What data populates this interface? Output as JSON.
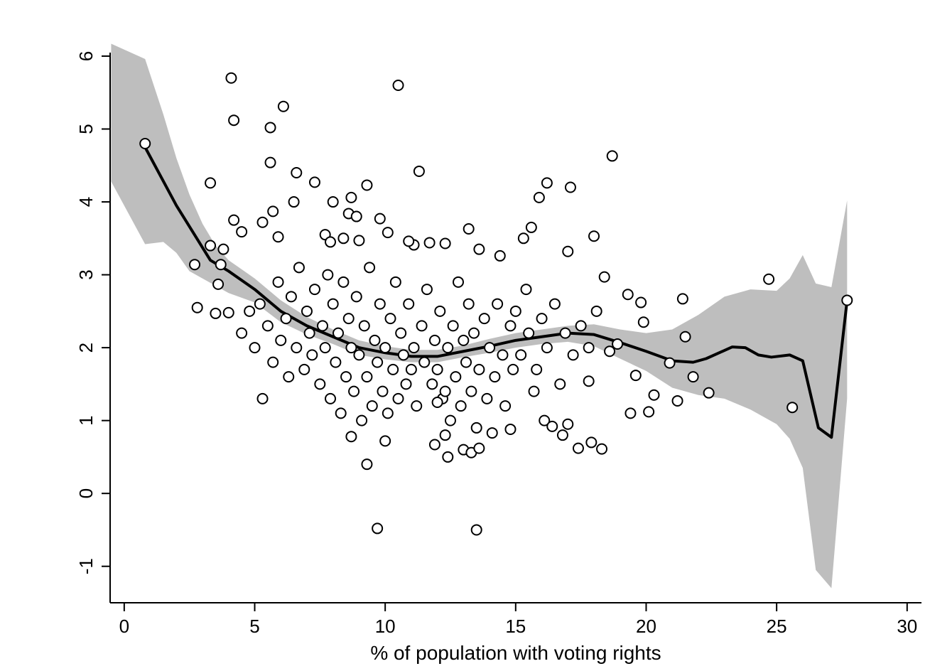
{
  "chart_data": {
    "type": "scatter",
    "xlabel": "% of population with voting rights",
    "xlim": [
      -0.54,
      30.55
    ],
    "ylim": [
      -1.5,
      6.77
    ],
    "xticks": [
      0,
      5,
      10,
      15,
      20,
      25,
      30
    ],
    "yticks": [
      -1,
      0,
      1,
      2,
      3,
      4,
      5,
      6
    ],
    "series": [
      {
        "type": "band",
        "color": "#bebebe",
        "x": [
          -0.5,
          0.8,
          1.5,
          2,
          2.5,
          3,
          3.5,
          4,
          5,
          6,
          7,
          8,
          9,
          10,
          11,
          12,
          13,
          14,
          15,
          16,
          17,
          18,
          19,
          20,
          21,
          22,
          23,
          24,
          25,
          25.5,
          26,
          26.5,
          27.1,
          27.7
        ],
        "upper": [
          6.17,
          5.96,
          5.2,
          4.6,
          4.1,
          3.7,
          3.4,
          3.2,
          2.95,
          2.65,
          2.42,
          2.25,
          2.1,
          2.02,
          1.97,
          1.97,
          2.03,
          2.12,
          2.2,
          2.25,
          2.3,
          2.32,
          2.25,
          2.2,
          2.25,
          2.45,
          2.7,
          2.8,
          2.78,
          2.95,
          3.27,
          2.88,
          2.83,
          4.02
        ],
        "lower": [
          4.28,
          3.42,
          3.45,
          3.3,
          3.05,
          2.95,
          2.85,
          2.75,
          2.62,
          2.35,
          2.18,
          2.05,
          1.9,
          1.84,
          1.8,
          1.8,
          1.87,
          1.93,
          2.0,
          2.05,
          2.08,
          2.02,
          1.85,
          1.68,
          1.45,
          1.35,
          1.3,
          1.15,
          0.95,
          0.75,
          0.35,
          -1.05,
          -1.3,
          1.3
        ]
      },
      {
        "type": "line",
        "color": "#000000",
        "x": [
          0.8,
          2,
          3.3,
          4,
          5,
          6,
          7,
          8,
          9,
          10,
          11,
          12,
          13,
          14,
          15,
          16,
          17,
          18,
          19,
          20,
          21,
          21.8,
          22.3,
          23.3,
          23.8,
          24.3,
          24.8,
          25.5,
          26,
          26.6,
          27.1,
          27.7
        ],
        "values": [
          4.75,
          3.95,
          3.2,
          3.05,
          2.8,
          2.5,
          2.3,
          2.15,
          2.0,
          1.93,
          1.88,
          1.88,
          1.95,
          2.02,
          2.1,
          2.15,
          2.2,
          2.18,
          2.07,
          1.95,
          1.82,
          1.8,
          1.85,
          2.01,
          2.0,
          1.9,
          1.87,
          1.9,
          1.82,
          0.9,
          0.77,
          2.65
        ]
      },
      {
        "type": "scatter",
        "color": "#ffffff",
        "x": [
          0.8,
          4.1,
          4.2,
          6.1,
          5.6,
          5.6,
          10.5,
          11.3,
          18.7,
          3.3,
          6.6,
          7.3,
          9.3,
          16.2,
          17.1,
          15.9,
          8.7,
          8.0,
          6.5,
          9.7,
          13.5,
          9.3,
          2.7,
          2.8,
          5.3,
          27.7,
          24.7,
          25.6,
          22.4,
          21.2,
          21.8,
          20.1,
          19.4,
          19.6,
          20.3,
          21.5,
          21.4,
          20.9,
          19.9,
          19.3,
          19.8,
          18.0,
          18.4,
          17.8,
          17.9,
          18.3,
          17.4,
          16.8,
          17.0,
          16.1,
          16.4,
          15.7,
          17.0,
          15.3,
          15.6,
          14.4,
          13.6,
          13.2,
          12.3,
          11.7,
          11.1,
          10.9,
          10.1,
          9.8,
          9.0,
          8.4,
          8.6,
          8.9,
          7.7,
          7.9,
          5.9,
          4.5,
          4.2,
          5.3,
          5.7,
          3.3,
          3.8,
          3.7,
          3.5,
          4.0,
          3.6,
          14.1,
          14.8,
          13.0,
          12.4,
          13.3,
          13.6,
          11.9,
          12.3,
          10.0,
          8.7,
          12.2,
          12.0,
          4.5,
          4.8,
          5.0,
          5.2,
          5.5,
          5.7,
          5.9,
          6.0,
          6.2,
          6.3,
          6.4,
          6.6,
          6.7,
          6.9,
          7.0,
          7.1,
          7.2,
          7.3,
          7.5,
          7.6,
          7.7,
          7.8,
          7.9,
          8.0,
          8.1,
          8.2,
          8.3,
          8.4,
          8.5,
          8.6,
          8.7,
          8.8,
          8.9,
          9.0,
          9.1,
          9.2,
          9.3,
          9.4,
          9.5,
          9.6,
          9.7,
          9.8,
          9.9,
          10.0,
          10.1,
          10.2,
          10.3,
          10.4,
          10.5,
          10.6,
          10.7,
          10.8,
          10.9,
          11.0,
          11.1,
          11.2,
          11.4,
          11.5,
          11.6,
          11.8,
          11.9,
          12.0,
          12.1,
          12.3,
          12.4,
          12.5,
          12.6,
          12.7,
          12.8,
          12.9,
          13.0,
          13.1,
          13.2,
          13.3,
          13.4,
          13.5,
          13.6,
          13.8,
          13.9,
          14.0,
          14.2,
          14.3,
          14.5,
          14.6,
          14.8,
          14.9,
          15.0,
          15.2,
          15.4,
          15.5,
          15.8,
          16.0,
          16.2,
          16.5,
          16.7,
          16.9,
          17.2,
          17.5,
          17.8,
          18.1,
          18.6,
          18.9
        ],
        "values": [
          4.8,
          5.7,
          5.12,
          5.31,
          5.02,
          4.54,
          5.6,
          4.42,
          4.63,
          4.26,
          4.4,
          4.27,
          4.23,
          4.26,
          4.2,
          4.06,
          4.06,
          4.0,
          4.0,
          -0.48,
          -0.5,
          0.4,
          3.14,
          2.55,
          1.3,
          2.65,
          2.94,
          1.18,
          1.38,
          1.27,
          1.6,
          1.12,
          1.1,
          1.62,
          1.35,
          2.15,
          2.67,
          1.79,
          2.35,
          2.73,
          2.62,
          3.53,
          2.97,
          1.54,
          0.7,
          0.61,
          0.62,
          0.8,
          0.95,
          1.0,
          0.92,
          1.4,
          3.32,
          3.5,
          3.65,
          3.26,
          3.35,
          3.63,
          3.43,
          3.44,
          3.41,
          3.46,
          3.58,
          3.77,
          3.47,
          3.5,
          3.84,
          3.8,
          3.55,
          3.45,
          3.52,
          3.59,
          3.75,
          3.72,
          3.87,
          3.4,
          3.35,
          3.14,
          2.47,
          2.48,
          2.87,
          0.83,
          0.88,
          0.6,
          0.5,
          0.56,
          0.62,
          0.67,
          0.8,
          0.72,
          0.78,
          1.3,
          1.25,
          2.2,
          2.5,
          2.0,
          2.6,
          2.3,
          1.8,
          2.9,
          2.1,
          2.4,
          1.6,
          2.7,
          2.0,
          3.1,
          1.7,
          2.5,
          2.2,
          1.9,
          2.8,
          1.5,
          2.3,
          2.0,
          3.0,
          1.3,
          2.6,
          1.8,
          2.2,
          1.1,
          2.9,
          1.6,
          2.4,
          2.0,
          1.4,
          2.7,
          1.9,
          1.0,
          2.3,
          1.6,
          3.1,
          1.2,
          2.1,
          1.8,
          2.6,
          1.4,
          2.0,
          1.1,
          2.4,
          1.7,
          2.9,
          1.3,
          2.2,
          1.9,
          1.5,
          2.6,
          1.7,
          2.0,
          1.2,
          2.3,
          1.8,
          2.8,
          1.5,
          2.1,
          1.7,
          2.5,
          1.4,
          2.0,
          1.0,
          2.3,
          1.6,
          2.9,
          1.2,
          2.1,
          1.8,
          2.6,
          1.4,
          2.2,
          0.9,
          1.7,
          2.4,
          1.3,
          2.0,
          1.6,
          2.6,
          1.9,
          1.2,
          2.3,
          1.7,
          2.5,
          1.9,
          2.8,
          2.2,
          1.7,
          2.4,
          2.0,
          2.6,
          1.5,
          2.2,
          1.9,
          2.3,
          2.0,
          2.5,
          1.95,
          2.05
        ]
      }
    ]
  }
}
